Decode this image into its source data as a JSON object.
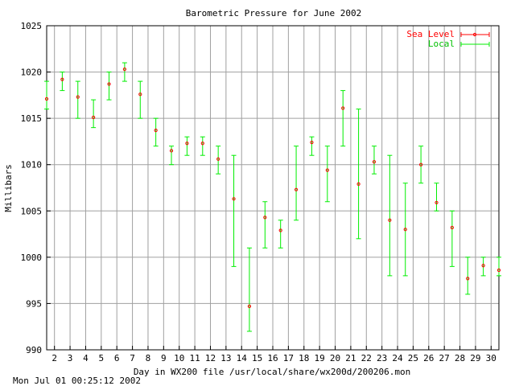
{
  "chart_data": {
    "type": "errorbar",
    "title": "Barometric Pressure for June 2002",
    "xlabel": "Day in WX200 file /usr/local/share/wx200d/200206.mon",
    "ylabel": "Millibars",
    "footer": "Mon Jul 01 00:25:12 2002",
    "xlim": [
      1.5,
      30.5
    ],
    "ylim": [
      990,
      1025
    ],
    "yticks": [
      990,
      995,
      1000,
      1005,
      1010,
      1015,
      1020,
      1025
    ],
    "xticks": [
      2,
      3,
      4,
      5,
      6,
      7,
      8,
      9,
      10,
      11,
      12,
      13,
      14,
      15,
      16,
      17,
      18,
      19,
      20,
      21,
      22,
      23,
      24,
      25,
      26,
      27,
      28,
      29,
      30
    ],
    "grid": true,
    "legend_position": "top-right",
    "colors": {
      "sea_level": "#ff0000",
      "local": "#00ee00"
    },
    "series": [
      {
        "name": "Sea Level",
        "x": [
          1.5,
          2.5,
          3.5,
          4.5,
          5.5,
          6.5,
          7.5,
          8.5,
          9.5,
          10.5,
          11.5,
          12.5,
          13.5,
          14.5,
          15.5,
          16.5,
          17.5,
          18.5,
          19.5,
          20.5,
          21.5,
          22.5,
          23.5,
          24.5,
          25.5,
          26.5,
          27.5,
          28.5,
          29.5,
          30.5
        ],
        "y": [
          1017.1,
          1019.2,
          1017.3,
          1015.1,
          1018.7,
          1020.3,
          1017.6,
          1013.7,
          1011.5,
          1012.3,
          1012.3,
          1010.6,
          1006.3,
          994.7,
          1004.3,
          1002.9,
          1007.3,
          1012.4,
          1009.4,
          1016.1,
          1007.9,
          1010.3,
          1004.0,
          1003.0,
          1010.0,
          1005.9,
          1003.2,
          997.7,
          999.1,
          998.6
        ]
      },
      {
        "name": "Local",
        "x": [
          1.5,
          2.5,
          3.5,
          4.5,
          5.5,
          6.5,
          7.5,
          8.5,
          9.5,
          10.5,
          11.5,
          12.5,
          13.5,
          14.5,
          15.5,
          16.5,
          17.5,
          18.5,
          19.5,
          20.5,
          21.5,
          22.5,
          23.5,
          24.5,
          25.5,
          26.5,
          27.5,
          28.5,
          29.5,
          30.5
        ],
        "low": [
          1016,
          1018,
          1015,
          1014,
          1017,
          1019,
          1015,
          1012,
          1010,
          1011,
          1011,
          1009,
          999,
          992,
          1001,
          1001,
          1004,
          1011,
          1006,
          1012,
          1002,
          1009,
          998,
          998,
          1008,
          1005,
          999,
          996,
          998,
          998
        ],
        "high": [
          1019,
          1020,
          1019,
          1017,
          1020,
          1021,
          1019,
          1015,
          1012,
          1013,
          1013,
          1012,
          1011,
          1001,
          1006,
          1004,
          1012,
          1013,
          1012,
          1018,
          1016,
          1012,
          1011,
          1008,
          1012,
          1008,
          1005,
          1000,
          1000,
          1000
        ]
      }
    ]
  }
}
